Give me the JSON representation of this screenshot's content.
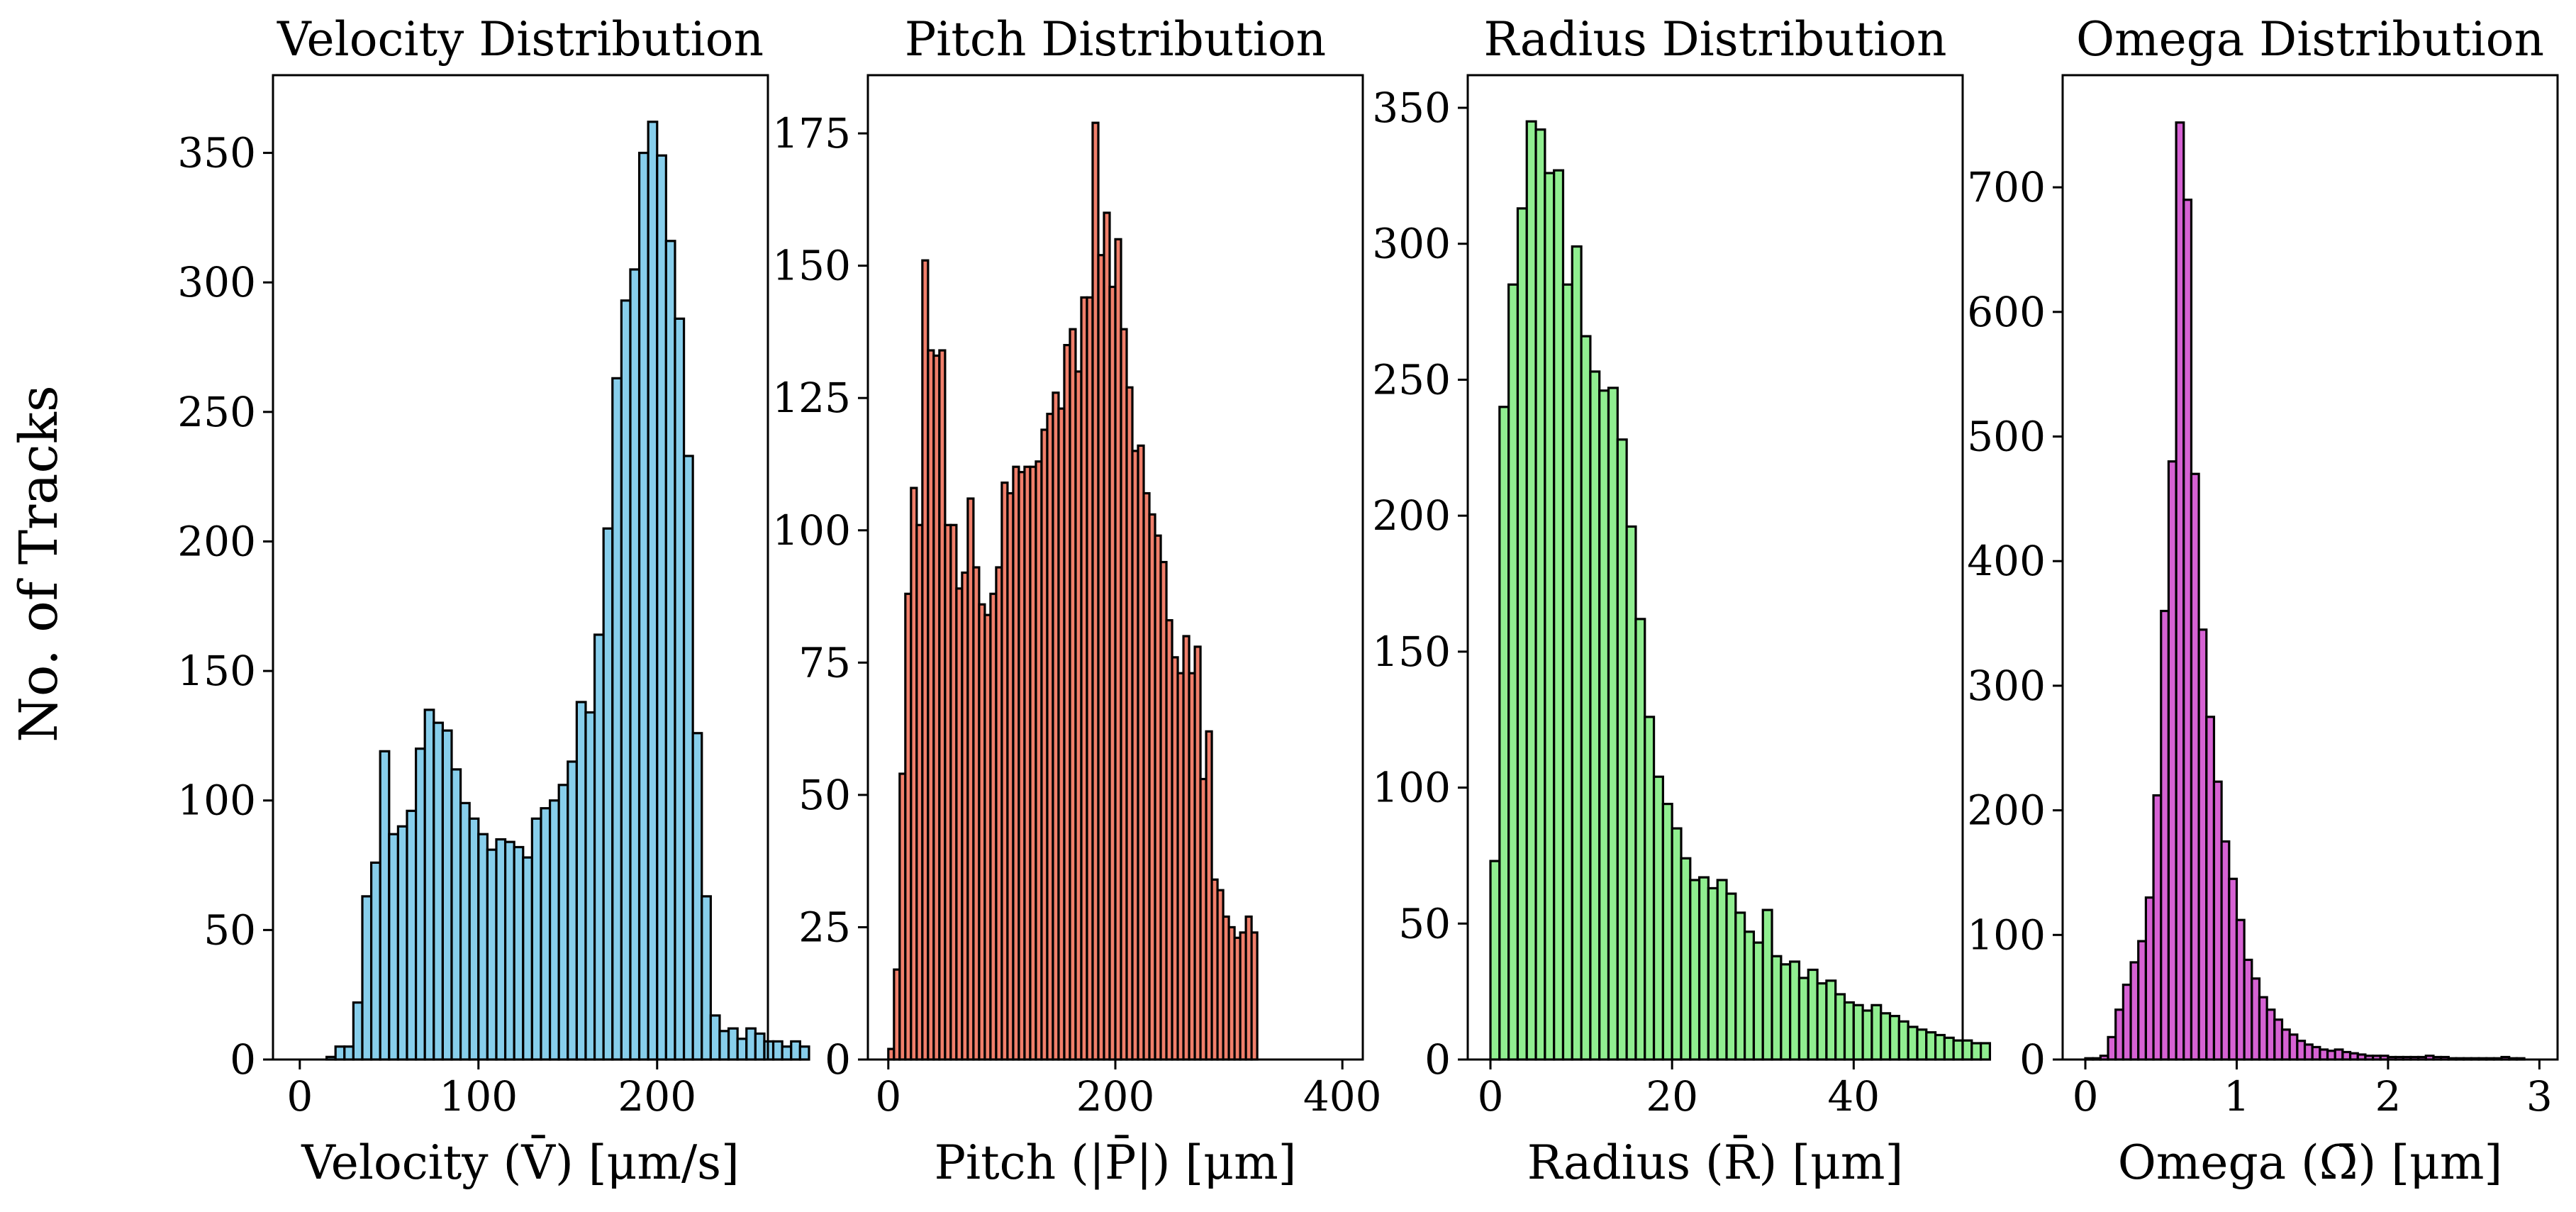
{
  "figure": {
    "ylabel": "No. of Tracks"
  },
  "chart_data": [
    {
      "type": "bar",
      "title": "Velocity Distribution",
      "xlabel": "Velocity (V̄) [μm/s]",
      "ylabel": "No. of Tracks",
      "color": "#87CEEB",
      "edge_color": "#000000",
      "xlim": [
        -15,
        262
      ],
      "ylim": [
        0,
        380
      ],
      "xticks": [
        0,
        100,
        200
      ],
      "yticks": [
        0,
        50,
        100,
        150,
        200,
        250,
        300,
        350
      ],
      "bin_start": 0,
      "bin_width": 5,
      "values": [
        0,
        0,
        0,
        1,
        5,
        5,
        22,
        63,
        76,
        119,
        87,
        90,
        96,
        120,
        135,
        130,
        127,
        112,
        99,
        93,
        87,
        81,
        85,
        84,
        82,
        78,
        93,
        97,
        100,
        106,
        115,
        138,
        134,
        164,
        205,
        263,
        293,
        305,
        350,
        362,
        349,
        316,
        286,
        233,
        126,
        63,
        17,
        11,
        12,
        8,
        12,
        10,
        7,
        7,
        5,
        7,
        5
      ]
    },
    {
      "type": "bar",
      "title": "Pitch Distribution",
      "xlabel": "Pitch (|P̄|) [μm]",
      "ylabel": "No. of Tracks",
      "color": "#F07F6B",
      "edge_color": "#000000",
      "xlim": [
        -18,
        418
      ],
      "ylim": [
        0,
        186
      ],
      "xticks": [
        0,
        200,
        400
      ],
      "yticks": [
        0,
        25,
        50,
        75,
        100,
        125,
        150,
        175
      ],
      "bin_start": 0,
      "bin_width": 5,
      "values": [
        2,
        17,
        54,
        88,
        108,
        101,
        151,
        134,
        133,
        134,
        101,
        101,
        89,
        92,
        106,
        93,
        86,
        84,
        88,
        93,
        109,
        107,
        112,
        111,
        112,
        112,
        113,
        119,
        122,
        126,
        123,
        135,
        138,
        130,
        144,
        144,
        177,
        152,
        160,
        146,
        155,
        138,
        127,
        115,
        116,
        107,
        103,
        99,
        94,
        83,
        76,
        73,
        80,
        73,
        78,
        53,
        62,
        34,
        32,
        27,
        25,
        23,
        24,
        27,
        24
      ]
    },
    {
      "type": "bar",
      "title": "Radius Distribution",
      "xlabel": "Radius (R̄) [μm]",
      "ylabel": "No. of Tracks",
      "color": "#90EE90",
      "edge_color": "#000000",
      "xlim": [
        -2.5,
        52.0
      ],
      "ylim": [
        0,
        362
      ],
      "xticks": [
        0,
        20,
        40
      ],
      "yticks": [
        0,
        50,
        100,
        150,
        200,
        250,
        300,
        350
      ],
      "bin_start": 0,
      "bin_width": 1,
      "values": [
        73,
        240,
        285,
        313,
        345,
        342,
        326,
        327,
        285,
        299,
        266,
        253,
        246,
        247,
        228,
        196,
        162,
        126,
        104,
        94,
        85,
        74,
        66,
        67,
        63,
        66,
        61,
        54,
        47,
        43,
        55,
        38,
        35,
        36,
        30,
        33,
        28,
        29,
        24,
        21,
        20,
        18,
        20,
        17,
        16,
        14,
        12,
        11,
        10,
        9,
        8,
        7,
        7,
        6,
        6
      ]
    },
    {
      "type": "bar",
      "title": "Omega Distribution",
      "xlabel": "Omega (Ω̄) [μm]",
      "ylabel": "No. of Tracks",
      "color": "#D662D3",
      "edge_color": "#000000",
      "xlim": [
        -0.15,
        3.12
      ],
      "ylim": [
        0,
        790
      ],
      "xticks": [
        0,
        1,
        2,
        3
      ],
      "yticks": [
        0,
        100,
        200,
        300,
        400,
        500,
        600,
        700
      ],
      "bin_start": 0,
      "bin_width": 0.05,
      "values": [
        1,
        1,
        3,
        18,
        40,
        60,
        78,
        95,
        130,
        212,
        360,
        480,
        752,
        690,
        470,
        345,
        275,
        223,
        175,
        145,
        112,
        80,
        65,
        50,
        40,
        32,
        24,
        20,
        15,
        12,
        10,
        8,
        7,
        8,
        6,
        5,
        4,
        3,
        3,
        3,
        2,
        2,
        2,
        2,
        2,
        3,
        2,
        2,
        1,
        1,
        1,
        1,
        1,
        1,
        1,
        2,
        1,
        1
      ]
    }
  ]
}
